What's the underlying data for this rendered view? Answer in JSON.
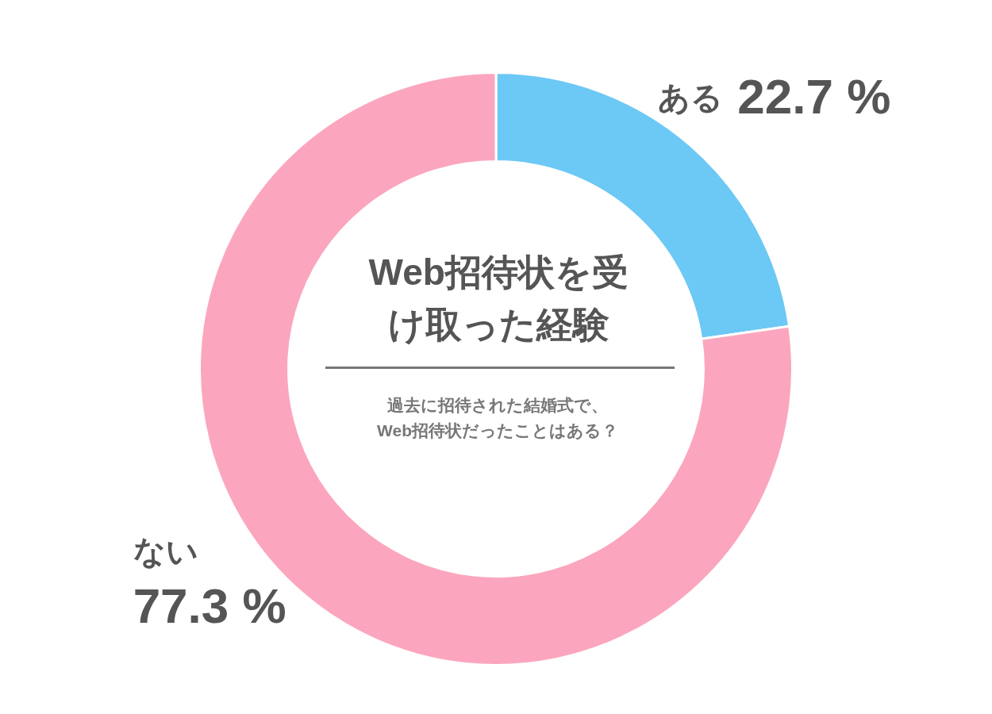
{
  "chart_data": {
    "type": "donut",
    "title": "Web招待状を受け取った経験",
    "subtitle": "過去に招待された結婚式で、\nWeb招待状だったことはある？",
    "categories": [
      "ある",
      "ない"
    ],
    "values": [
      22.7,
      77.3
    ],
    "colors": [
      "#6cc8f4",
      "#fba6be"
    ],
    "value_labels": [
      "22.7 %",
      "77.3 %"
    ],
    "legend": false
  }
}
